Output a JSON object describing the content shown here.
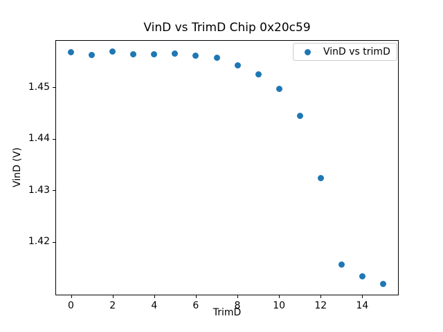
{
  "figure": {
    "title": "VinD vs TrimD Chip 0x20c59"
  },
  "chart_data": {
    "type": "scatter",
    "title": "VinD vs TrimD Chip 0x20c59",
    "xlabel": "TrimD",
    "ylabel": "VinD (V)",
    "legend": {
      "label": "VinD vs trimD",
      "position": "upper right"
    },
    "marker_color": "#1f77b4",
    "grid": false,
    "x": [
      0,
      1,
      2,
      3,
      4,
      5,
      6,
      7,
      8,
      9,
      10,
      11,
      12,
      13,
      14,
      15
    ],
    "y": [
      1.4568,
      1.4563,
      1.4569,
      1.4564,
      1.4564,
      1.4565,
      1.4562,
      1.4557,
      1.4543,
      1.4525,
      1.4497,
      1.4445,
      1.4324,
      1.4156,
      1.4133,
      1.4119
    ],
    "xlim": [
      -0.75,
      15.75
    ],
    "ylim": [
      1.40965,
      1.45915
    ],
    "xticks": [
      0,
      2,
      4,
      6,
      8,
      10,
      12,
      14
    ],
    "ytick_labels": [
      "1.42",
      "1.43",
      "1.44",
      "1.45"
    ],
    "ytick_values": [
      1.42,
      1.43,
      1.44,
      1.45
    ]
  }
}
